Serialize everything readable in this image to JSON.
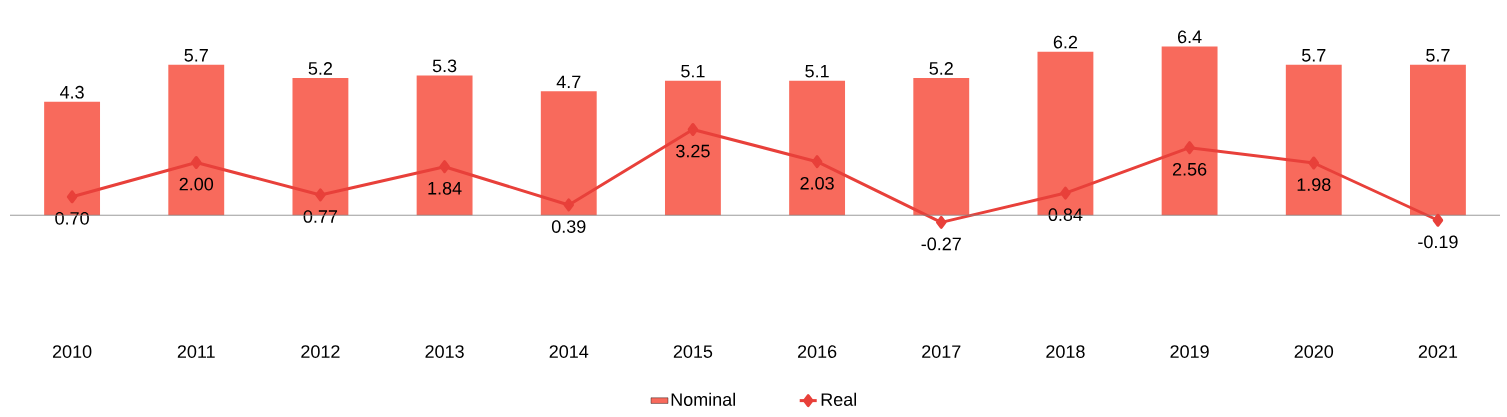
{
  "chart_data": {
    "type": "bar",
    "categories": [
      "2010",
      "2011",
      "2012",
      "2013",
      "2014",
      "2015",
      "2016",
      "2017",
      "2018",
      "2019",
      "2020",
      "2021"
    ],
    "series": [
      {
        "name": "Nominal",
        "color": "#f86a5c",
        "values": [
          4.3,
          5.7,
          5.2,
          5.3,
          4.7,
          5.1,
          5.1,
          5.2,
          6.2,
          6.4,
          5.7,
          5.7
        ],
        "value_labels": [
          "4.3",
          "5.7",
          "5.2",
          "5.3",
          "4.7",
          "5.1",
          "5.1",
          "5.2",
          "6.2",
          "6.4",
          "5.7",
          "5.7"
        ]
      },
      {
        "name": "Real",
        "type": "line",
        "color": "#e8403a",
        "marker": "diamond",
        "values": [
          0.7,
          2.0,
          0.77,
          1.84,
          0.39,
          3.25,
          2.03,
          -0.27,
          0.84,
          2.56,
          1.98,
          -0.19
        ],
        "value_labels": [
          "0.70",
          "2.00",
          "0.77",
          "1.84",
          "0.39",
          "3.25",
          "2.03",
          "-0.27",
          "0.84",
          "2.56",
          "1.98",
          "-0.19"
        ]
      }
    ],
    "legend": "bottom"
  }
}
